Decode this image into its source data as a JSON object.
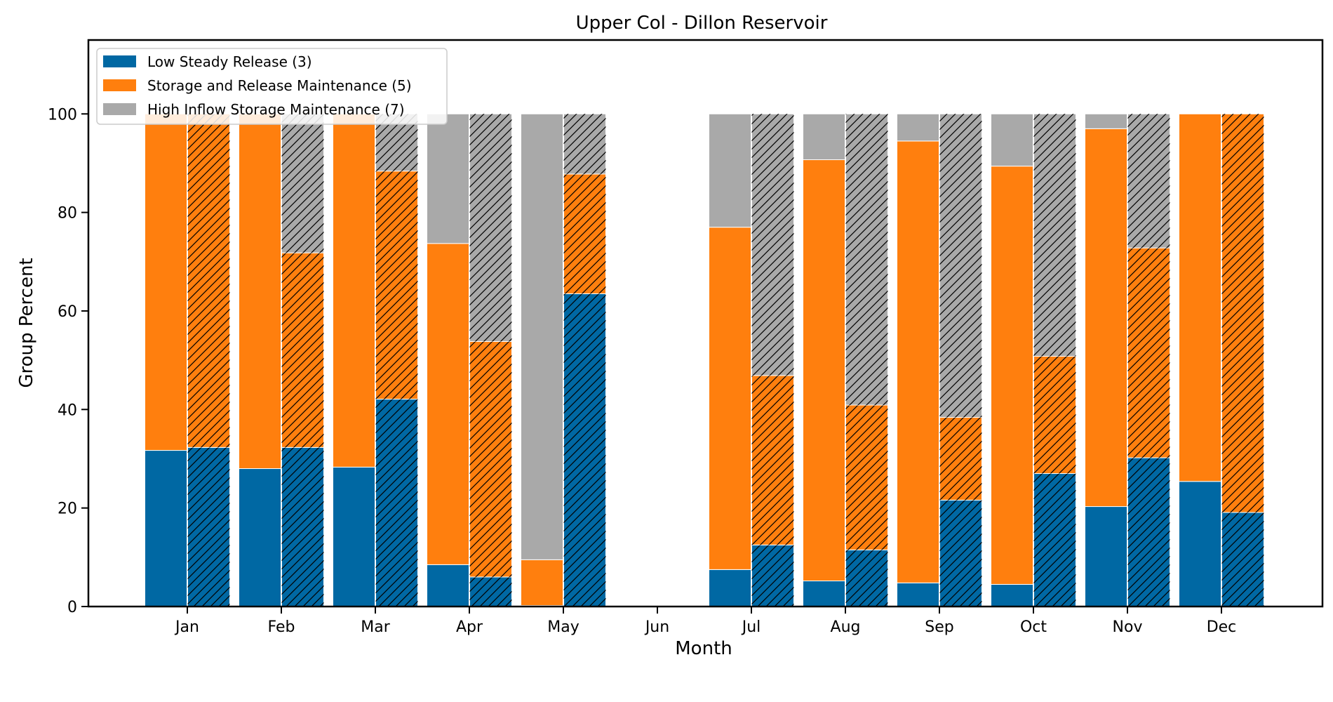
{
  "chart_data": {
    "type": "bar",
    "title": "Upper Col - Dillon Reservoir",
    "xlabel": "Month",
    "ylabel": "Group Percent",
    "ylim": [
      0,
      115
    ],
    "yticks": [
      0,
      20,
      40,
      60,
      80,
      100
    ],
    "categories": [
      "Jan",
      "Feb",
      "Mar",
      "Apr",
      "May",
      "Jun",
      "Jul",
      "Aug",
      "Sep",
      "Oct",
      "Nov",
      "Dec"
    ],
    "grid": false,
    "legend_position": "top-left",
    "series": [
      {
        "name": "Low Steady Release (3)",
        "color": "#0068a3"
      },
      {
        "name": "Storage and Release Maintenance (5)",
        "color": "#ff7f0e"
      },
      {
        "name": "High Inflow Storage Maintenance (7)",
        "color": "#a9a9a9"
      }
    ],
    "bar_pairs": [
      {
        "solid": [
          31.7,
          68.3,
          0
        ],
        "hatched": [
          32.3,
          67.7,
          0
        ]
      },
      {
        "solid": [
          28.0,
          72.0,
          0
        ],
        "hatched": [
          32.3,
          39.5,
          28.2
        ]
      },
      {
        "solid": [
          28.3,
          71.7,
          0
        ],
        "hatched": [
          42.1,
          46.3,
          11.6
        ]
      },
      {
        "solid": [
          8.5,
          65.2,
          26.3
        ],
        "hatched": [
          6.0,
          47.8,
          46.2
        ]
      },
      {
        "solid": [
          0.2,
          9.3,
          90.5
        ],
        "hatched": [
          63.5,
          24.3,
          12.2
        ]
      },
      {
        "solid": [
          0,
          0,
          0
        ],
        "hatched": [
          0,
          0,
          0
        ]
      },
      {
        "solid": [
          7.5,
          69.5,
          23.0
        ],
        "hatched": [
          12.5,
          34.4,
          53.1
        ]
      },
      {
        "solid": [
          5.2,
          85.5,
          9.3
        ],
        "hatched": [
          11.5,
          29.4,
          59.1
        ]
      },
      {
        "solid": [
          4.8,
          89.7,
          5.5
        ],
        "hatched": [
          21.6,
          16.8,
          61.6
        ]
      },
      {
        "solid": [
          4.5,
          84.9,
          10.6
        ],
        "hatched": [
          27.0,
          23.8,
          49.2
        ]
      },
      {
        "solid": [
          20.3,
          76.7,
          3.0
        ],
        "hatched": [
          30.2,
          42.6,
          27.2
        ]
      },
      {
        "solid": [
          25.4,
          74.6,
          0
        ],
        "hatched": [
          19.1,
          80.9,
          0
        ]
      }
    ]
  }
}
